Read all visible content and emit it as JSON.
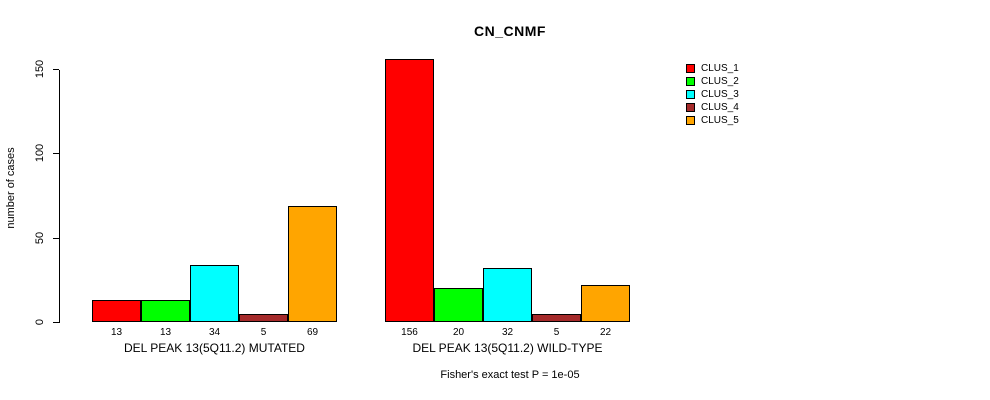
{
  "chart_data": {
    "type": "bar",
    "title": "CN_CNMF",
    "ylabel": "number of cases",
    "ylim": [
      0,
      150
    ],
    "yticks": [
      0,
      50,
      100,
      150
    ],
    "grid": false,
    "legend_position": "top-right",
    "series_colors": [
      "#FF0000",
      "#00FF00",
      "#00FFFF",
      "#A52A2A",
      "#FFA500"
    ],
    "legend_entries": [
      {
        "label": "CLUS_1",
        "color": "#FF0000"
      },
      {
        "label": "CLUS_2",
        "color": "#00FF00"
      },
      {
        "label": "CLUS_3",
        "color": "#00FFFF"
      },
      {
        "label": "CLUS_4",
        "color": "#A52A2A"
      },
      {
        "label": "CLUS_5",
        "color": "#FFA500"
      }
    ],
    "groups": [
      {
        "label": "DEL PEAK 13(5Q11.2) MUTATED",
        "values": [
          13,
          13,
          34,
          5,
          69
        ]
      },
      {
        "label": "DEL PEAK 13(5Q11.2) WILD-TYPE",
        "values": [
          156,
          20,
          32,
          5,
          22
        ]
      }
    ],
    "caption": "Fisher's exact test P = 1e-05"
  }
}
